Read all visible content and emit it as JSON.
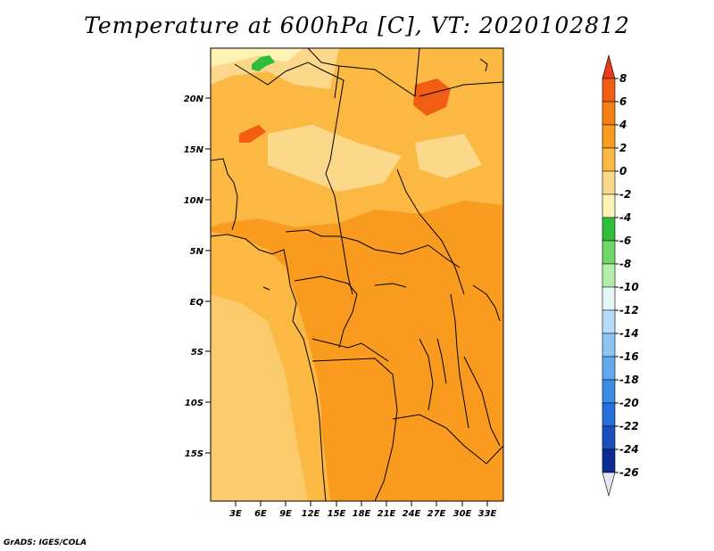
{
  "title": "Temperature at 600hPa [C], VT: 2020102812",
  "credit": "GrADS: IGES/COLA",
  "lat_labels": [
    "20N",
    "15N",
    "10N",
    "5N",
    "EQ",
    "5S",
    "10S",
    "15S"
  ],
  "lon_labels": [
    "3E",
    "6E",
    "9E",
    "12E",
    "15E",
    "18E",
    "21E",
    "24E",
    "27E",
    "30E",
    "33E"
  ],
  "colorbar": {
    "labels": [
      "8",
      "6",
      "4",
      "2",
      "0",
      "-2",
      "-4",
      "-6",
      "-8",
      "-10",
      "-12",
      "-14",
      "-16",
      "-18",
      "-20",
      "-22",
      "-24",
      "-26"
    ],
    "colors": [
      "#e8391c",
      "#f25d14",
      "#f77e12",
      "#f99b1e",
      "#fbb944",
      "#fcd98a",
      "#fff2b5",
      "#2fbd3a",
      "#6fd86a",
      "#b4eeaa",
      "#e4f8f8",
      "#b7dcf8",
      "#8cc4f5",
      "#62a9ef",
      "#3a8ee8",
      "#2470da",
      "#1b4fbf",
      "#0b2a93",
      "#e4e4f4"
    ]
  },
  "map": {
    "background": "#f99b1e"
  }
}
